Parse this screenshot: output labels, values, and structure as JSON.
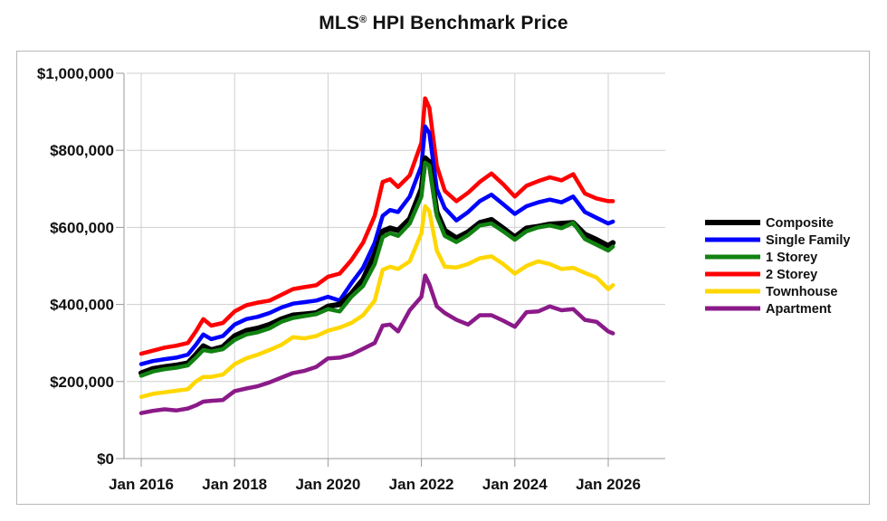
{
  "chart_data": {
    "type": "line",
    "title": "MLS® HPI Benchmark Price",
    "title_main": "MLS",
    "title_sup": "®",
    "title_rest": " HPI Benchmark Price",
    "xlabel": "",
    "ylabel": "",
    "xlim": [
      2016.0,
      2027.2
    ],
    "ylim": [
      0,
      1000000
    ],
    "grid": true,
    "legend_position": "right",
    "x_ticks": [
      {
        "value": 2016,
        "label": "Jan 2016"
      },
      {
        "value": 2018,
        "label": "Jan 2018"
      },
      {
        "value": 2020,
        "label": "Jan 2020"
      },
      {
        "value": 2022,
        "label": "Jan 2022"
      },
      {
        "value": 2024,
        "label": "Jan 2024"
      },
      {
        "value": 2026,
        "label": "Jan 2026"
      }
    ],
    "y_ticks": [
      {
        "value": 0,
        "label": "$0"
      },
      {
        "value": 200000,
        "label": "$200,000"
      },
      {
        "value": 400000,
        "label": "$400,000"
      },
      {
        "value": 600000,
        "label": "$600,000"
      },
      {
        "value": 800000,
        "label": "$800,000"
      },
      {
        "value": 1000000,
        "label": "$1,000,000"
      }
    ],
    "x": [
      2016.0,
      2016.25,
      2016.5,
      2016.75,
      2017.0,
      2017.17,
      2017.33,
      2017.5,
      2017.75,
      2018.0,
      2018.25,
      2018.5,
      2018.75,
      2019.0,
      2019.25,
      2019.5,
      2019.75,
      2020.0,
      2020.25,
      2020.5,
      2020.75,
      2021.0,
      2021.17,
      2021.33,
      2021.5,
      2021.75,
      2022.0,
      2022.08,
      2022.17,
      2022.33,
      2022.5,
      2022.75,
      2023.0,
      2023.25,
      2023.5,
      2023.75,
      2024.0,
      2024.25,
      2024.5,
      2024.75,
      2025.0,
      2025.25,
      2025.5,
      2025.75,
      2026.0,
      2026.1
    ],
    "series": [
      {
        "name": "Composite",
        "color": "#000000",
        "values": [
          222000,
          233000,
          238000,
          242000,
          248000,
          270000,
          292000,
          282000,
          290000,
          318000,
          332000,
          338000,
          348000,
          362000,
          372000,
          375000,
          378000,
          395000,
          400000,
          428000,
          465000,
          530000,
          590000,
          598000,
          592000,
          622000,
          700000,
          780000,
          770000,
          640000,
          592000,
          572000,
          588000,
          612000,
          620000,
          598000,
          575000,
          598000,
          602000,
          608000,
          610000,
          612000,
          582000,
          568000,
          552000,
          560000
        ]
      },
      {
        "name": "Single Family",
        "color": "#0000ff",
        "values": [
          245000,
          253000,
          258000,
          262000,
          270000,
          295000,
          322000,
          310000,
          318000,
          348000,
          362000,
          368000,
          378000,
          392000,
          402000,
          406000,
          410000,
          420000,
          410000,
          455000,
          495000,
          560000,
          630000,
          645000,
          640000,
          680000,
          760000,
          862000,
          845000,
          700000,
          650000,
          618000,
          640000,
          668000,
          685000,
          660000,
          635000,
          655000,
          665000,
          672000,
          665000,
          680000,
          640000,
          625000,
          610000,
          615000
        ]
      },
      {
        "name": "1 Storey",
        "color": "#118211",
        "values": [
          215000,
          226000,
          232000,
          236000,
          242000,
          262000,
          282000,
          278000,
          284000,
          308000,
          322000,
          328000,
          338000,
          355000,
          365000,
          370000,
          375000,
          388000,
          382000,
          420000,
          448000,
          505000,
          575000,
          585000,
          578000,
          610000,
          680000,
          768000,
          760000,
          630000,
          578000,
          562000,
          580000,
          605000,
          610000,
          590000,
          568000,
          590000,
          600000,
          605000,
          598000,
          612000,
          570000,
          555000,
          540000,
          550000
        ]
      },
      {
        "name": "2 Storey",
        "color": "#ff0000",
        "values": [
          272000,
          280000,
          288000,
          293000,
          300000,
          330000,
          362000,
          345000,
          352000,
          382000,
          398000,
          405000,
          410000,
          425000,
          440000,
          445000,
          450000,
          472000,
          480000,
          515000,
          560000,
          630000,
          718000,
          725000,
          705000,
          735000,
          820000,
          935000,
          910000,
          760000,
          695000,
          668000,
          690000,
          718000,
          740000,
          712000,
          680000,
          708000,
          720000,
          730000,
          722000,
          738000,
          688000,
          675000,
          668000,
          668000
        ]
      },
      {
        "name": "Townhouse",
        "color": "#ffd700",
        "values": [
          160000,
          168000,
          172000,
          176000,
          180000,
          200000,
          212000,
          212000,
          218000,
          245000,
          260000,
          270000,
          282000,
          295000,
          315000,
          312000,
          318000,
          332000,
          340000,
          352000,
          372000,
          410000,
          490000,
          498000,
          492000,
          512000,
          585000,
          655000,
          642000,
          540000,
          498000,
          496000,
          505000,
          520000,
          525000,
          505000,
          480000,
          500000,
          512000,
          505000,
          492000,
          495000,
          482000,
          470000,
          440000,
          450000
        ]
      },
      {
        "name": "Apartment",
        "color": "#8b1a89",
        "values": [
          118000,
          124000,
          128000,
          125000,
          130000,
          138000,
          148000,
          150000,
          152000,
          175000,
          182000,
          188000,
          198000,
          210000,
          222000,
          228000,
          238000,
          260000,
          262000,
          270000,
          285000,
          300000,
          345000,
          348000,
          330000,
          385000,
          420000,
          475000,
          452000,
          395000,
          378000,
          360000,
          348000,
          372000,
          372000,
          358000,
          342000,
          380000,
          382000,
          395000,
          385000,
          388000,
          360000,
          355000,
          330000,
          325000
        ]
      }
    ]
  }
}
